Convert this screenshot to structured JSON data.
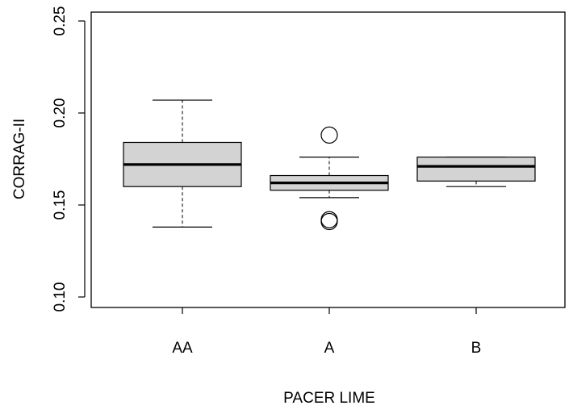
{
  "chart_data": {
    "type": "boxplot",
    "title": "",
    "xlabel": "PACER LIME",
    "ylabel": "CORRAG-II",
    "ylim": [
      0.1,
      0.25
    ],
    "yticks": [
      "0.10",
      "0.15",
      "0.20",
      "0.25"
    ],
    "categories": [
      "AA",
      "A",
      "B"
    ],
    "boxes": [
      {
        "category": "AA",
        "whisker_low": 0.138,
        "q1": 0.16,
        "median": 0.172,
        "q3": 0.184,
        "whisker_high": 0.207,
        "outliers": []
      },
      {
        "category": "A",
        "whisker_low": 0.154,
        "q1": 0.158,
        "median": 0.162,
        "q3": 0.166,
        "whisker_high": 0.176,
        "outliers": [
          0.188,
          0.141,
          0.142
        ]
      },
      {
        "category": "B",
        "whisker_low": 0.16,
        "q1": 0.163,
        "median": 0.171,
        "q3": 0.176,
        "whisker_high": 0.176,
        "outliers": []
      }
    ],
    "grid": false,
    "legend": "none",
    "colors": {
      "box_fill": "#d3d3d3",
      "stroke": "#000000",
      "background": "#ffffff"
    }
  }
}
